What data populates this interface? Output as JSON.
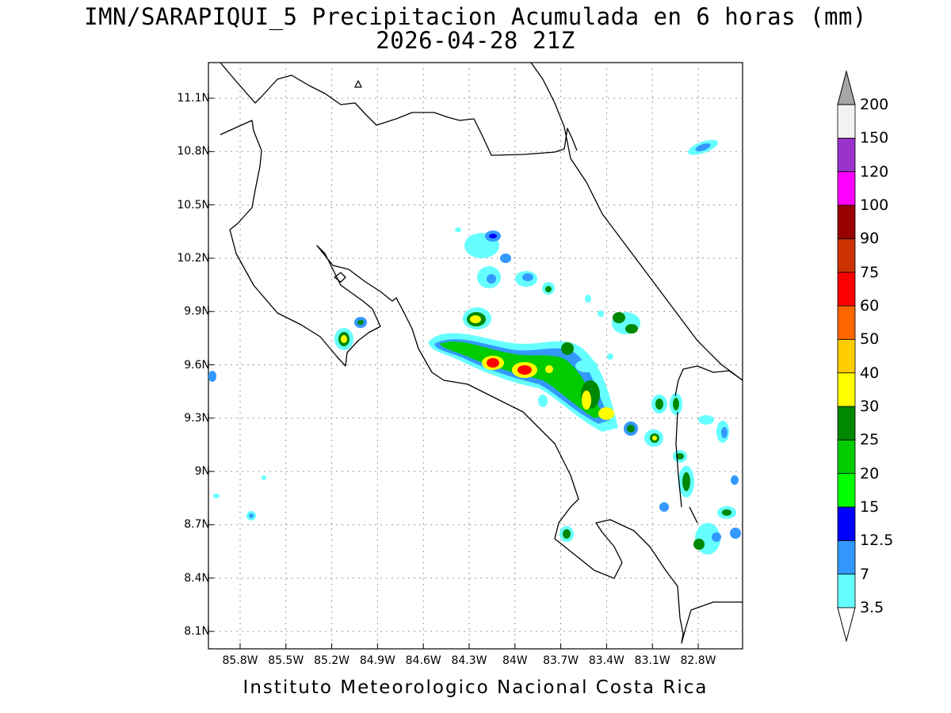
{
  "title_line1": "IMN/SARAPIQUI_5 Precipitacion Acumulada en 6 horas (mm)",
  "title_line2": "2026-04-28 21Z",
  "footer": "Instituto Meteorologico Nacional Costa Rica",
  "lat_ticks": [
    "11.1N",
    "10.8N",
    "10.5N",
    "10.2N",
    "9.9N",
    "9.6N",
    "9.3N",
    "9N",
    "8.7N",
    "8.4N",
    "8.1N"
  ],
  "lon_ticks": [
    "85.8W",
    "85.5W",
    "85.2W",
    "84.9W",
    "84.6W",
    "84.3W",
    "84W",
    "83.7W",
    "83.4W",
    "83.1W",
    "82.8W"
  ],
  "colorbar": {
    "levels": [
      "3.5",
      "7",
      "12.5",
      "15",
      "20",
      "25",
      "30",
      "40",
      "50",
      "60",
      "75",
      "90",
      "100",
      "120",
      "150",
      "200"
    ],
    "colors": [
      "#66ffff",
      "#3399ff",
      "#0000ff",
      "#00ff00",
      "#00cc00",
      "#008800",
      "#ffff00",
      "#ffcc00",
      "#ff6600",
      "#ff0000",
      "#cc3300",
      "#990000",
      "#ff00ff",
      "#9933cc",
      "#f2f2f2",
      "#a6a6a6"
    ]
  }
}
